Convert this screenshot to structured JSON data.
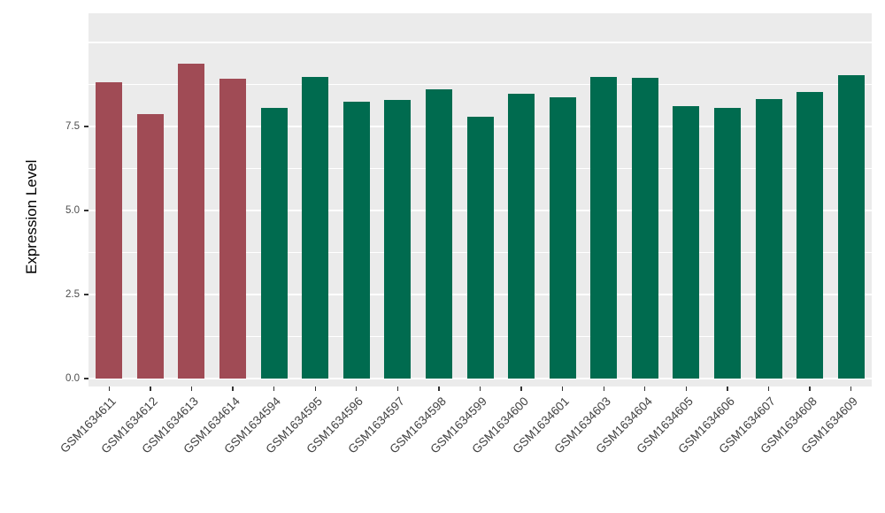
{
  "chart_data": {
    "type": "bar",
    "title": "",
    "ylabel": "Expression Level",
    "xlabel": "",
    "categories": [
      "GSM1634611",
      "GSM1634612",
      "GSM1634613",
      "GSM1634614",
      "GSM1634594",
      "GSM1634595",
      "GSM1634596",
      "GSM1634597",
      "GSM1634598",
      "GSM1634599",
      "GSM1634600",
      "GSM1634601",
      "GSM1634603",
      "GSM1634604",
      "GSM1634605",
      "GSM1634606",
      "GSM1634607",
      "GSM1634608",
      "GSM1634609"
    ],
    "values": [
      8.82,
      7.88,
      9.38,
      8.92,
      8.05,
      8.97,
      8.24,
      8.3,
      8.61,
      7.8,
      8.47,
      8.37,
      8.97,
      8.95,
      8.1,
      8.05,
      8.32,
      8.53,
      9.02
    ],
    "groups": [
      "groupA",
      "groupA",
      "groupA",
      "groupA",
      "groupB",
      "groupB",
      "groupB",
      "groupB",
      "groupB",
      "groupB",
      "groupB",
      "groupB",
      "groupB",
      "groupB",
      "groupB",
      "groupB",
      "groupB",
      "groupB",
      "groupB"
    ],
    "colors": {
      "groupA": "#A04B55",
      "groupB": "#006B4F"
    },
    "ylim": [
      0,
      10.9
    ],
    "yticks": [
      0,
      2.5,
      5.0,
      7.5
    ],
    "ytick_labels": [
      "0.0",
      "2.5",
      "5.0",
      "7.5"
    ],
    "grid": {
      "major": [
        0,
        2.5,
        5.0,
        7.5,
        10.0
      ],
      "minor": [
        1.25,
        3.75,
        6.25,
        8.75
      ]
    },
    "panel_background": "#EBEBEB",
    "gridline_color": "#FFFFFF",
    "legend": "none",
    "x_label_angle": 45
  }
}
